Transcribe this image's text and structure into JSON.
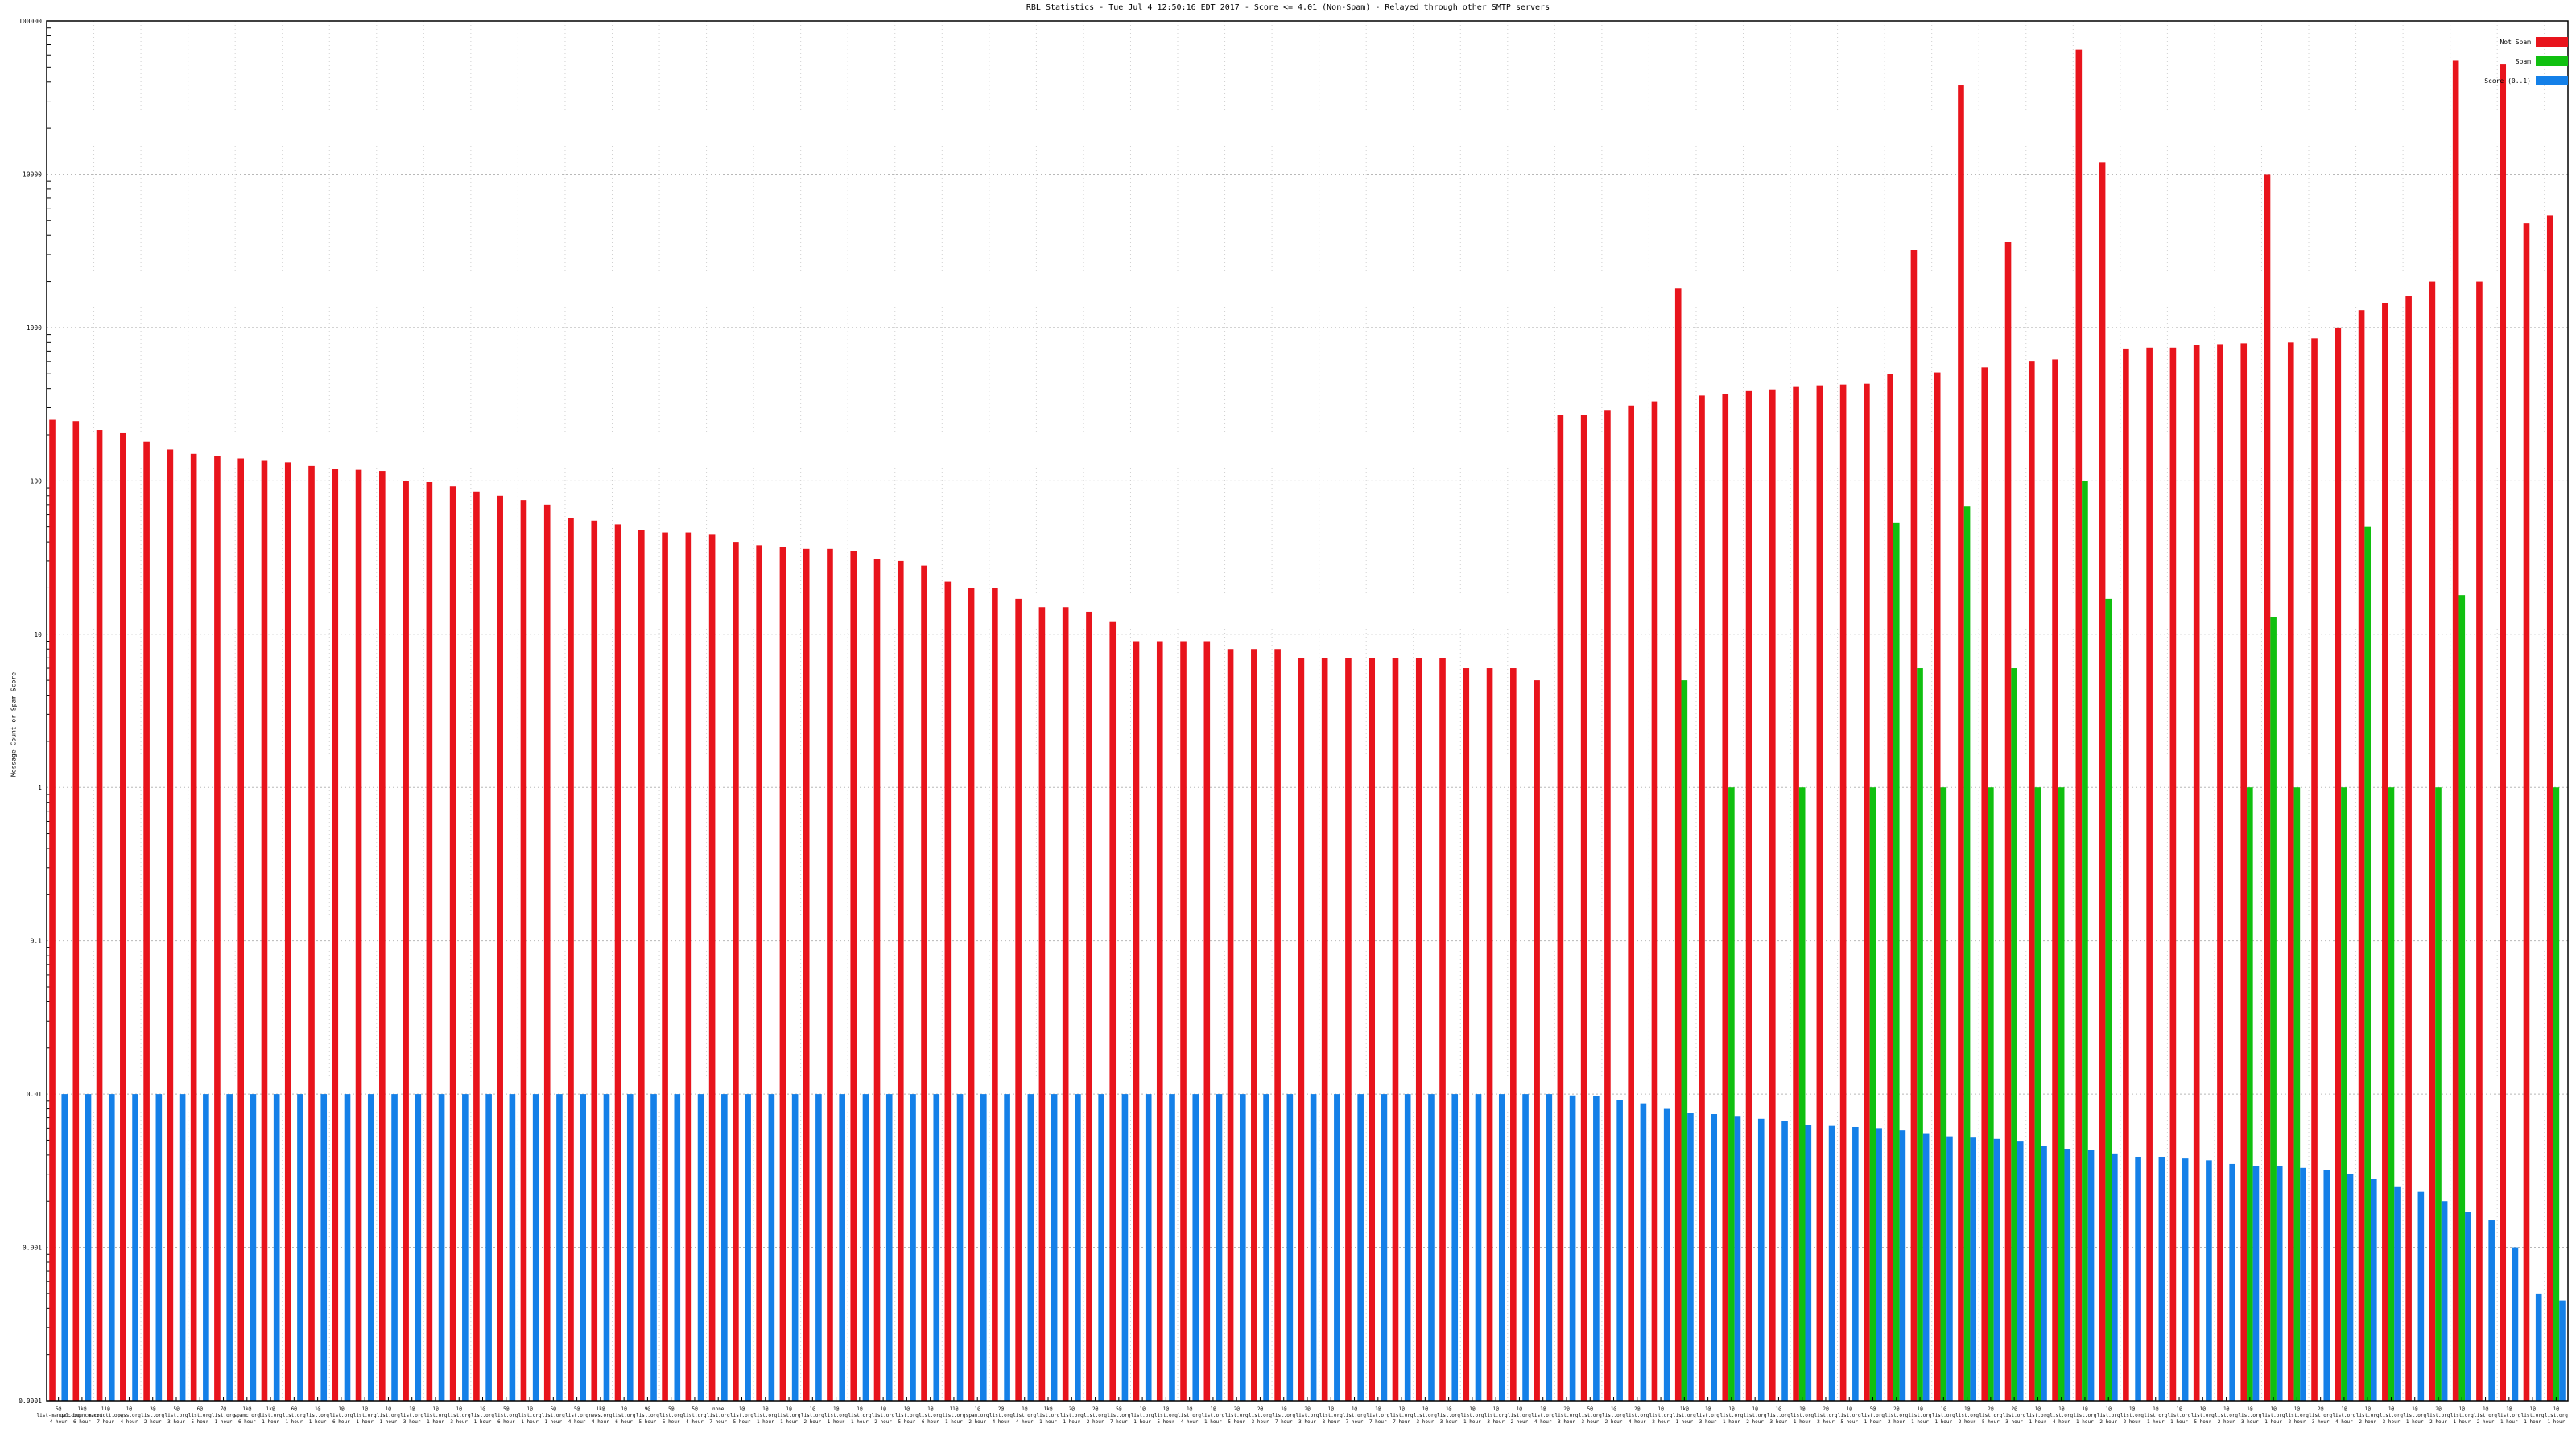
{
  "chart_data": {
    "type": "bar",
    "title": "RBL Statistics - Tue Jul  4 12:50:16 EDT 2017 - Score <= 4.01 (Non-Spam) - Relayed through other SMTP servers",
    "xlabel": "",
    "ylabel": "Message Count or Spam Score",
    "yscale": "log",
    "ylim": [
      0.0001,
      100000
    ],
    "yticks": [
      "0.0001",
      "0.001",
      "0.01",
      "0.1",
      "1",
      "10",
      "100",
      "1000",
      "10000",
      "100000"
    ],
    "grid": true,
    "legend_position": "top-right",
    "series": [
      {
        "name": "Not Spam",
        "color": "#e8141c",
        "values": [
          250,
          245,
          215,
          205,
          180,
          160,
          150,
          145,
          140,
          135,
          132,
          125,
          120,
          118,
          116,
          100,
          98,
          92,
          85,
          80,
          75,
          70,
          57,
          55,
          52,
          48,
          46,
          46,
          45,
          40,
          38,
          37,
          36,
          36,
          35,
          31,
          30,
          28,
          22,
          20,
          20,
          17,
          15,
          15,
          14,
          12,
          9,
          9,
          9,
          9,
          8,
          8,
          8,
          7,
          7,
          7,
          7,
          7,
          7,
          7,
          6,
          6,
          6,
          5,
          270,
          270,
          290,
          310,
          330,
          1800,
          360,
          370,
          385,
          395,
          410,
          420,
          425,
          430,
          500,
          3200,
          510,
          38000,
          550,
          3600,
          600,
          620,
          65000,
          12000,
          730,
          740,
          740,
          770,
          780,
          790,
          10000,
          800,
          850,
          1000,
          1300,
          1450,
          1600,
          2000,
          55000,
          2000,
          52000,
          4800,
          5400
        ]
      },
      {
        "name": "Spam",
        "color": "#10c010",
        "values": [
          null,
          null,
          null,
          null,
          null,
          null,
          null,
          null,
          null,
          null,
          null,
          null,
          null,
          null,
          null,
          null,
          null,
          null,
          null,
          null,
          null,
          null,
          null,
          null,
          null,
          null,
          null,
          null,
          null,
          null,
          null,
          null,
          null,
          null,
          null,
          null,
          null,
          null,
          null,
          null,
          null,
          null,
          null,
          null,
          null,
          null,
          null,
          null,
          null,
          null,
          null,
          null,
          null,
          null,
          null,
          null,
          null,
          null,
          null,
          null,
          null,
          null,
          null,
          null,
          null,
          null,
          null,
          null,
          null,
          5,
          null,
          1,
          null,
          null,
          1,
          null,
          null,
          1,
          53,
          6,
          1,
          68,
          1,
          6,
          1,
          1,
          100,
          17,
          null,
          null,
          null,
          null,
          null,
          1,
          13,
          1,
          null,
          1,
          50,
          1,
          null,
          1,
          18,
          null,
          null,
          null,
          1
        ]
      },
      {
        "name": "Score (0..1)",
        "color": "#1480e8",
        "values": [
          0.01,
          0.01,
          0.01,
          0.01,
          0.01,
          0.01,
          0.01,
          0.01,
          0.01,
          0.01,
          0.01,
          0.01,
          0.01,
          0.01,
          0.01,
          0.01,
          0.01,
          0.01,
          0.01,
          0.01,
          0.01,
          0.01,
          0.01,
          0.01,
          0.01,
          0.01,
          0.01,
          0.01,
          0.01,
          0.01,
          0.01,
          0.01,
          0.01,
          0.01,
          0.01,
          0.01,
          0.01,
          0.01,
          0.01,
          0.01,
          0.01,
          0.01,
          0.01,
          0.01,
          0.01,
          0.01,
          0.01,
          0.01,
          0.01,
          0.01,
          0.01,
          0.01,
          0.01,
          0.01,
          0.01,
          0.01,
          0.01,
          0.01,
          0.01,
          0.01,
          0.01,
          0.01,
          0.01,
          0.01,
          0.0098,
          0.0097,
          0.0092,
          0.0087,
          0.008,
          0.0075,
          0.0074,
          0.0072,
          0.0069,
          0.0067,
          0.0063,
          0.0062,
          0.0061,
          0.006,
          0.0058,
          0.0055,
          0.0053,
          0.0052,
          0.0051,
          0.0049,
          0.0046,
          0.0044,
          0.0043,
          0.0041,
          0.0039,
          0.0039,
          0.0038,
          0.0037,
          0.0035,
          0.0034,
          0.0034,
          0.0033,
          0.0032,
          0.003,
          0.0028,
          0.0025,
          0.0023,
          0.002,
          0.0017,
          0.0015,
          0.001,
          0.0005,
          0.00045
        ]
      }
    ],
    "categories": [
      "5@ list-manual.org",
      "1k@ pcc-bounce.com",
      "11@ marriott.org",
      "1@ pass.org",
      "3@ list.org",
      "5@ list.org",
      "6@ list.org",
      "7@ list.org",
      "1k@ spamc.org",
      "1k@ list.org",
      "6@ list.org",
      "1@ list.org",
      "1@ list.org",
      "1@ list.org",
      "1@ list.org",
      "1@ list.org",
      "1@ list.org",
      "1@ list.org",
      "1@ list.org",
      "5@ list.org",
      "1@ list.org",
      "5@ list.org",
      "5@ list.org",
      "1k@ news.org",
      "1@ list.org",
      "9@ list.org",
      "5@ list.org",
      "5@ list.org",
      "none list.org",
      "1@ list.org",
      "1@ list.org",
      "1@ list.org",
      "1@ list.org",
      "1@ list.org",
      "1@ list.org",
      "1@ list.org",
      "1@ list.org",
      "1@ list.org",
      "11@ list.org",
      "1@ spam.org",
      "2@ list.org",
      "1@ list.org",
      "1k@ list.org",
      "2@ list.org",
      "2@ list.org",
      "5@ list.org",
      "1@ list.org",
      "1@ list.org",
      "1@ list.org",
      "1@ list.org",
      "2@ list.org",
      "2@ list.org",
      "1@ list.org",
      "2@ list.org",
      "1@ list.org",
      "1@ list.org",
      "1@ list.org",
      "1@ list.org",
      "1@ list.org",
      "1@ list.org",
      "1@ list.org",
      "1@ list.org",
      "1@ list.org",
      "1@ list.org",
      "2@ list.org",
      "5@ list.org",
      "1@ list.org",
      "2@ list.org",
      "1@ list.org",
      "1k@ list.org",
      "1@ list.org",
      "1@ list.org",
      "1@ list.org",
      "1@ list.org",
      "1@ list.org",
      "2@ list.org",
      "1@ list.org",
      "5@ list.org",
      "2@ list.org",
      "1@ list.org",
      "1@ list.org",
      "1@ list.org",
      "2@ list.org",
      "2@ list.org",
      "1@ list.org",
      "1@ list.org",
      "1@ list.org",
      "1@ list.org",
      "1@ list.org",
      "1@ list.org",
      "1@ list.org",
      "1@ list.org",
      "1@ list.org",
      "1@ list.org",
      "1@ list.org",
      "1@ list.org",
      "2@ list.org",
      "1@ list.org",
      "1@ list.org",
      "1@ list.org",
      "1@ list.org",
      "2@ list.org",
      "1@ list.org",
      "1@ list.org",
      "1@ list.org",
      "1@ list.org",
      "1@ list.org"
    ],
    "category_sublabels": [
      "4 hour",
      "6 hour",
      "7 hour",
      "4 hour",
      "2 hour",
      "3 hour",
      "5 hour",
      "1 hour",
      "6 hour",
      "1 hour",
      "1 hour",
      "1 hour",
      "6 hour",
      "1 hour",
      "1 hour",
      "3 hour",
      "1 hour",
      "3 hour",
      "1 hour",
      "6 hour",
      "1 hour",
      "1 hour",
      "4 hour",
      "4 hour",
      "6 hour",
      "5 hour",
      "5 hour",
      "4 hour",
      "7 hour",
      "5 hour",
      "1 hour",
      "1 hour",
      "2 hour",
      "1 hour",
      "1 hour",
      "2 hour",
      "5 hour",
      "6 hour",
      "1 hour",
      "2 hour",
      "4 hour",
      "4 hour",
      "1 hour",
      "1 hour",
      "2 hour",
      "7 hour",
      "1 hour",
      "5 hour",
      "4 hour",
      "1 hour",
      "5 hour",
      "3 hour",
      "7 hour",
      "3 hour",
      "8 hour",
      "7 hour",
      "7 hour",
      "7 hour",
      "3 hour",
      "3 hour",
      "1 hour",
      "3 hour",
      "2 hour",
      "4 hour",
      "3 hour",
      "3 hour",
      "2 hour",
      "4 hour",
      "2 hour",
      "1 hour",
      "3 hour",
      "1 hour",
      "2 hour",
      "3 hour",
      "1 hour",
      "2 hour",
      "5 hour",
      "1 hour",
      "2 hour",
      "1 hour",
      "1 hour",
      "2 hour",
      "5 hour",
      "3 hour",
      "1 hour",
      "4 hour",
      "1 hour",
      "2 hour",
      "2 hour",
      "1 hour",
      "1 hour",
      "5 hour",
      "2 hour",
      "3 hour",
      "1 hour",
      "2 hour",
      "3 hour",
      "4 hour",
      "2 hour",
      "3 hour",
      "1 hour",
      "2 hour",
      "1 hour",
      "2 hour",
      "1 hour",
      "1 hour",
      "1 hour"
    ]
  }
}
